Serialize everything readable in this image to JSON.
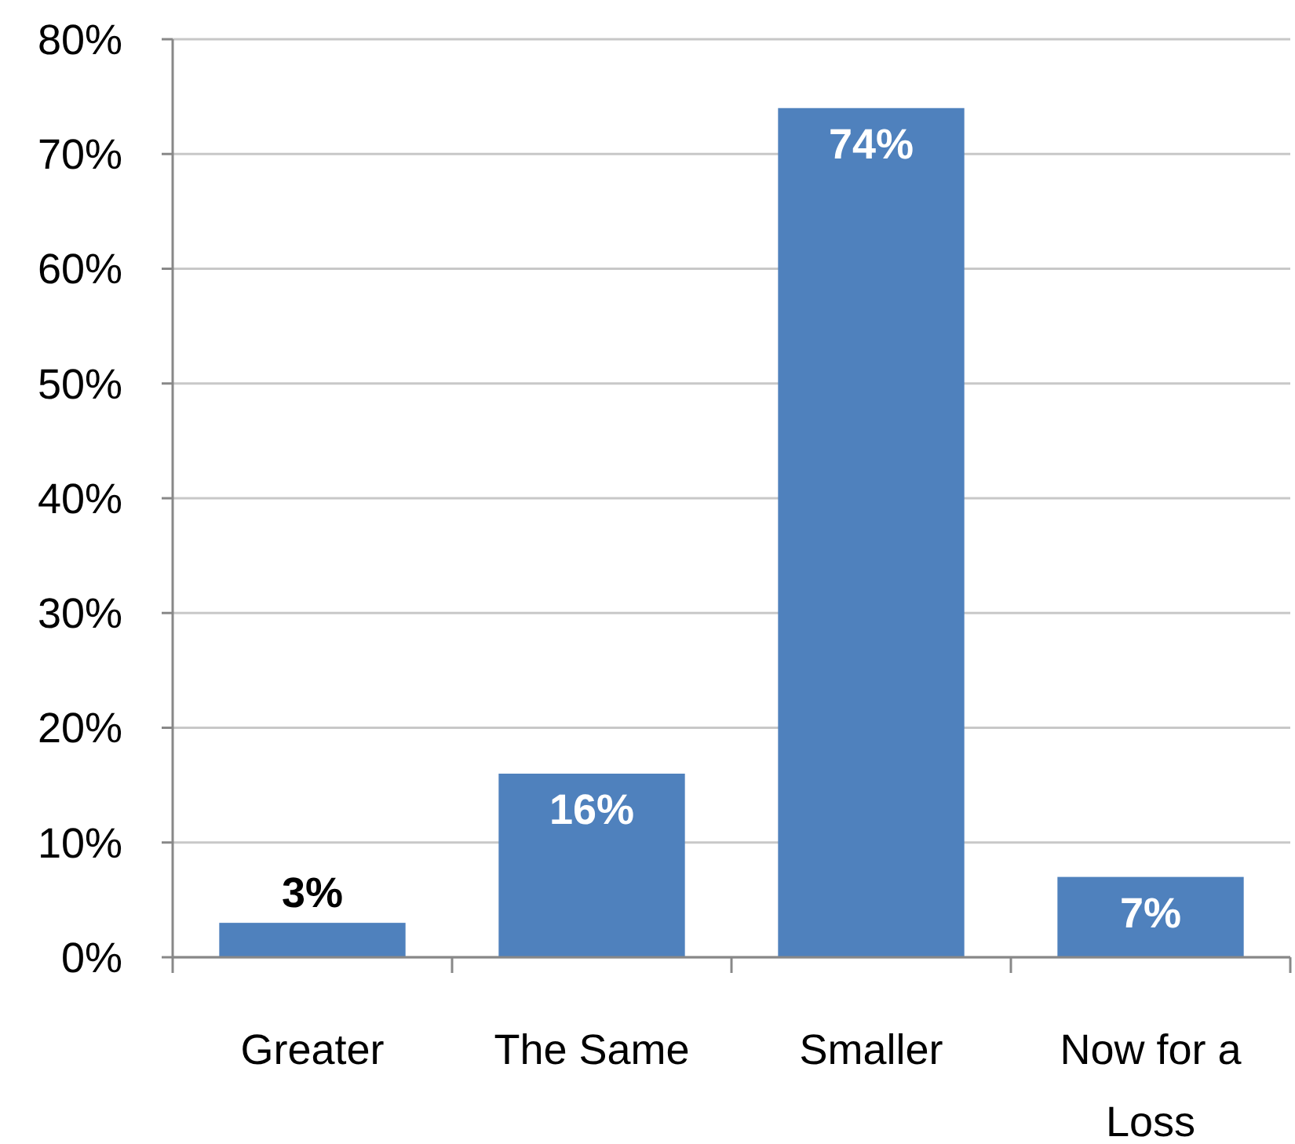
{
  "chart_data": {
    "type": "bar",
    "categories": [
      "Greater",
      "The Same",
      "Smaller",
      "Now for a Loss"
    ],
    "values": [
      3,
      16,
      74,
      7
    ],
    "value_labels": [
      "3%",
      "16%",
      "74%",
      "7%"
    ],
    "color": "#4f81bd",
    "ylim": [
      0,
      80
    ],
    "yticks": [
      {
        "value": 0,
        "label": "0%"
      },
      {
        "value": 10,
        "label": "10%"
      },
      {
        "value": 20,
        "label": "20%"
      },
      {
        "value": 30,
        "label": "30%"
      },
      {
        "value": 40,
        "label": "40%"
      },
      {
        "value": 50,
        "label": "50%"
      },
      {
        "value": 60,
        "label": "60%"
      },
      {
        "value": 70,
        "label": "70%"
      },
      {
        "value": 80,
        "label": "80%"
      }
    ],
    "grid": "y"
  }
}
